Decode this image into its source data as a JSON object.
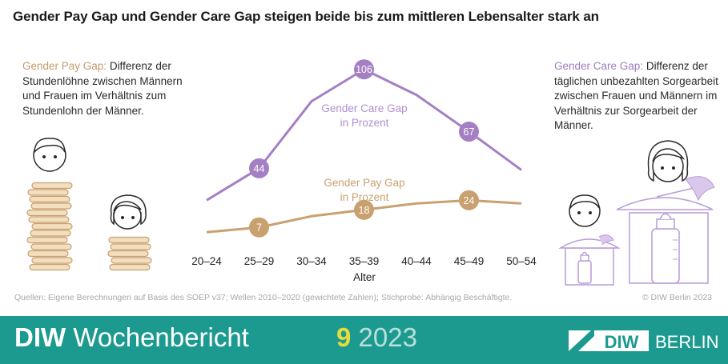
{
  "title": "Gender Pay Gap und Gender Care Gap steigen beide bis zum mittleren Lebensalter stark an",
  "left_note": {
    "term": "Gender Pay Gap:",
    "text": " Differenz der Stundenlöhne zwischen Männern und Frauen im Verhältnis zum Stundenlohn der Männer."
  },
  "right_note": {
    "term": "Gender Care Gap:",
    "text": " Differenz der täglichen unbezahlten Sorgearbeit zwischen Frauen und Männern im Verhältnis zur Sorgearbeit der Männer."
  },
  "colors": {
    "care": "#a57fc4",
    "pay": "#c9a06f",
    "footer": "#1d9a8f"
  },
  "chart_data": {
    "type": "line",
    "categories": [
      "20–24",
      "25–29",
      "30–34",
      "35–39",
      "40–44",
      "45–49",
      "50–54"
    ],
    "xlabel": "Alter",
    "series": [
      {
        "name": "Gender Care Gap",
        "unit": "in Prozent",
        "values": [
          24,
          44,
          86,
          106,
          90,
          67,
          43
        ],
        "labeled": [
          1,
          3,
          5
        ]
      },
      {
        "name": "Gender Pay Gap",
        "unit": "in Prozent",
        "values": [
          4,
          7,
          14,
          18,
          22,
          24,
          22
        ],
        "labeled": [
          1,
          3,
          5
        ]
      }
    ],
    "grid": false
  },
  "source": "Quellen: Eigene Berechnungen auf Basis des SOEP v37; Wellen 2010–2020 (gewichtete Zahlen); Stichprobe: Abhängig Beschäftigte.",
  "copyright": "© DIW Berlin 2023",
  "footer": {
    "brand_bold": "DIW",
    "brand_rest": " Wochenbericht",
    "issue_number": "9",
    "issue_year": " 2023",
    "logo_left": "DIW",
    "logo_right": "BERLIN"
  },
  "icons": [
    "man-face-icon",
    "woman-face-icon",
    "coin-stack-icon",
    "baby-bottle-icon",
    "cooking-pot-icon"
  ]
}
